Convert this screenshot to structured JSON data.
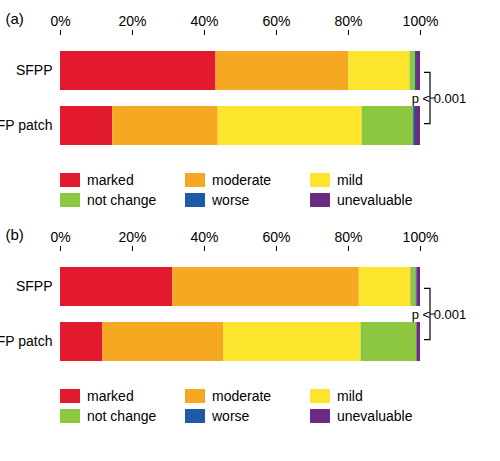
{
  "chart_data": [
    {
      "type": "bar",
      "title": "(a)",
      "orientation": "horizontal",
      "stacked": true,
      "legend": "bottom",
      "categories": [
        "SFPP",
        "FP patch"
      ],
      "xlim": [
        0,
        100
      ],
      "xticks": [
        {
          "value": 0,
          "label": "0%"
        },
        {
          "value": 20,
          "label": "20%"
        },
        {
          "value": 40,
          "label": "40%"
        },
        {
          "value": 60,
          "label": "60%"
        },
        {
          "value": 80,
          "label": "80%"
        },
        {
          "value": 100,
          "label": "100%"
        }
      ],
      "annotation": "p < 0.001",
      "series": [
        {
          "name": "marked",
          "color": "#e31a2f",
          "values": [
            43.2,
            14.5
          ]
        },
        {
          "name": "moderate",
          "color": "#f7a823",
          "values": [
            36.9,
            29.3
          ]
        },
        {
          "name": "mild",
          "color": "#fde52e",
          "values": [
            17.0,
            40.0
          ]
        },
        {
          "name": "not change",
          "color": "#8dc63f",
          "values": [
            1.5,
            14.3
          ]
        },
        {
          "name": "worse",
          "color": "#1f5aa6",
          "values": [
            0.3,
            0.5
          ]
        },
        {
          "name": "unevaluable",
          "color": "#6a2c82",
          "values": [
            1.1,
            1.4
          ]
        }
      ]
    },
    {
      "type": "bar",
      "title": "(b)",
      "orientation": "horizontal",
      "stacked": true,
      "legend": "bottom",
      "categories": [
        "SFPP",
        "FP patch"
      ],
      "xlim": [
        0,
        100
      ],
      "xticks": [
        {
          "value": 0,
          "label": "0%"
        },
        {
          "value": 20,
          "label": "20%"
        },
        {
          "value": 40,
          "label": "40%"
        },
        {
          "value": 60,
          "label": "60%"
        },
        {
          "value": 80,
          "label": "80%"
        },
        {
          "value": 100,
          "label": "100%"
        }
      ],
      "annotation": "p < 0.001",
      "series": [
        {
          "name": "marked",
          "color": "#e31a2f",
          "values": [
            31.2,
            11.8
          ]
        },
        {
          "name": "moderate",
          "color": "#f7a823",
          "values": [
            51.8,
            33.5
          ]
        },
        {
          "name": "mild",
          "color": "#fde52e",
          "values": [
            14.3,
            38.2
          ]
        },
        {
          "name": "not change",
          "color": "#8dc63f",
          "values": [
            1.5,
            15.5
          ]
        },
        {
          "name": "worse",
          "color": "#1f5aa6",
          "values": [
            0.2,
            0.0
          ]
        },
        {
          "name": "unevaluable",
          "color": "#6a2c82",
          "values": [
            1.0,
            1.0
          ]
        }
      ]
    }
  ]
}
